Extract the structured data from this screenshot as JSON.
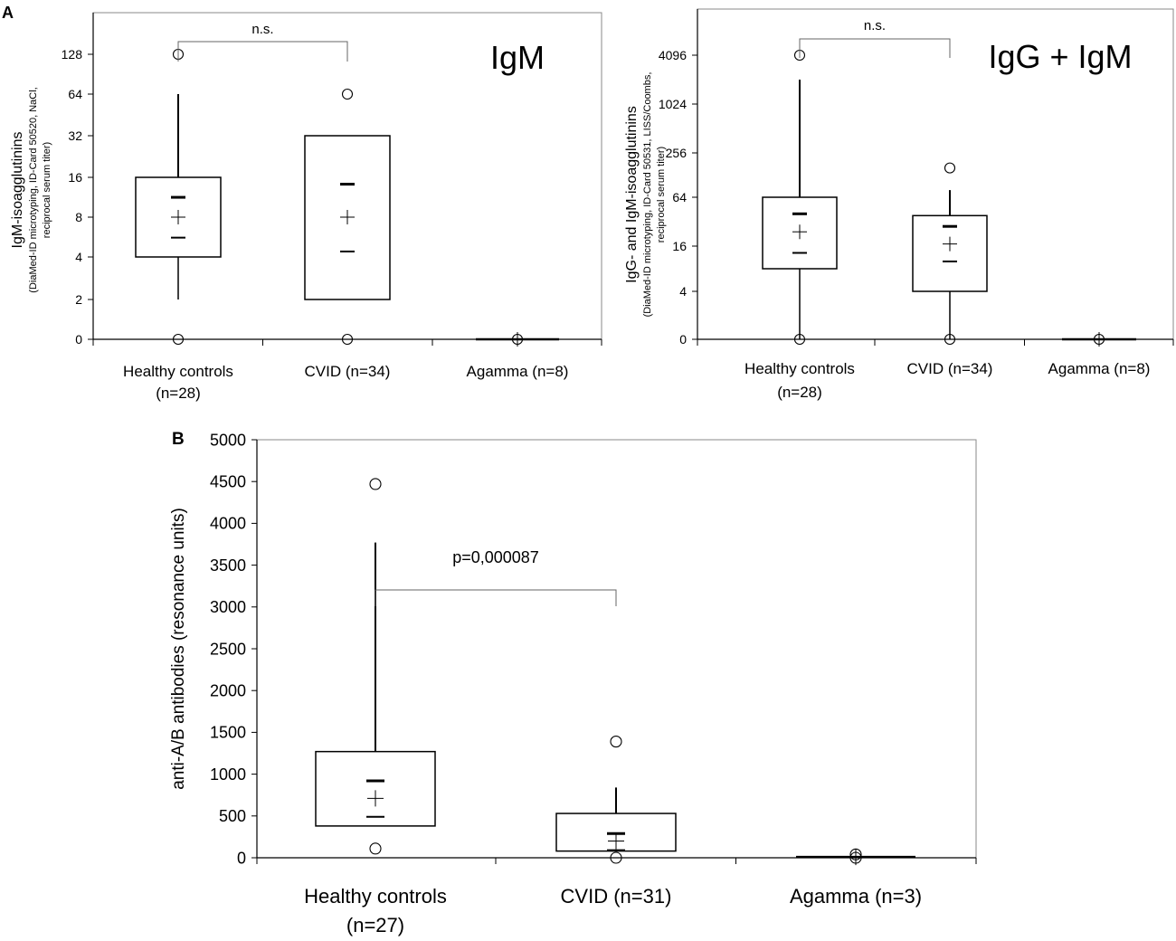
{
  "figure": {
    "panel_a_letter": "A",
    "panel_b_letter": "B"
  },
  "chart_data": [
    {
      "type": "box",
      "panel": "A",
      "title": "IgM",
      "ylabel": "IgM-isoagglutinins",
      "ylabel_sub": [
        "(DiaMed-ID microtyping, ID-Card 50520, NaCl,",
        "reciprocal serum titer)"
      ],
      "y_scale": "log2",
      "ylim": [
        0,
        256
      ],
      "yticks": [
        {
          "value": 0,
          "label": "0"
        },
        {
          "value": 2,
          "label": "2"
        },
        {
          "value": 4,
          "label": "4"
        },
        {
          "value": 8,
          "label": "8"
        },
        {
          "value": 16,
          "label": "16"
        },
        {
          "value": 32,
          "label": "32"
        },
        {
          "value": 64,
          "label": "64"
        },
        {
          "value": 128,
          "label": "128"
        }
      ],
      "categories": [
        {
          "label": [
            "Healthy controls",
            "(n=28)"
          ],
          "whisker_low": 2,
          "q1": 4,
          "q3": 16,
          "whisker_high": 64,
          "mean": 8,
          "ci_low": 5.6,
          "ci_high": 11.3,
          "outliers": [
            0,
            128
          ]
        },
        {
          "label": [
            "CVID (n=34)"
          ],
          "whisker_low": null,
          "q1": 2,
          "q3": 32,
          "whisker_high": null,
          "mean": 8,
          "ci_low": 4.4,
          "ci_high": 14.2,
          "outliers": [
            0,
            64
          ]
        },
        {
          "label": [
            "Agamma (n=8)"
          ],
          "flat": 0,
          "mean": 0,
          "outliers": [
            0
          ]
        }
      ],
      "bracket": {
        "from": 0,
        "to": 1,
        "label": "n.s."
      }
    },
    {
      "type": "box",
      "panel": "A",
      "title": "IgG + IgM",
      "ylabel": "IgG- and IgM-isoagglutinins",
      "ylabel_sub": [
        "(DiaMed-ID microtyping, ID-Card 50531, LISS/Coombs,",
        "reciprocal serum titer)"
      ],
      "y_scale": "log4",
      "ylim": [
        0,
        16384
      ],
      "yticks": [
        {
          "value": 0,
          "label": "0"
        },
        {
          "value": 4,
          "label": "4"
        },
        {
          "value": 16,
          "label": "16"
        },
        {
          "value": 64,
          "label": "64"
        },
        {
          "value": 256,
          "label": "256"
        },
        {
          "value": 1024,
          "label": "1024"
        },
        {
          "value": 4096,
          "label": "4096"
        }
      ],
      "categories": [
        {
          "label": [
            "Healthy controls",
            "(n=28)"
          ],
          "whisker_low": 0,
          "q1": 8,
          "q3": 64,
          "whisker_high": 2048,
          "mean": 24,
          "ci_low": 13,
          "ci_high": 40,
          "outliers": [
            0,
            4096
          ]
        },
        {
          "label": [
            "CVID (n=34)"
          ],
          "whisker_low": 0,
          "q1": 4,
          "q3": 38,
          "whisker_high": 80,
          "mean": 17,
          "ci_low": 10,
          "ci_high": 28,
          "outliers": [
            0,
            160
          ]
        },
        {
          "label": [
            "Agamma (n=8)"
          ],
          "flat": 0,
          "mean": 0,
          "outliers": [
            0
          ]
        }
      ],
      "bracket": {
        "from": 0,
        "to": 1,
        "label": "n.s."
      }
    },
    {
      "type": "box",
      "panel": "B",
      "title": "",
      "ylabel": "anti-A/B antibodies (resonance units)",
      "y_scale": "linear",
      "ylim": [
        0,
        5000
      ],
      "yticks": [
        {
          "value": 0,
          "label": "0"
        },
        {
          "value": 500,
          "label": "500"
        },
        {
          "value": 1000,
          "label": "1000"
        },
        {
          "value": 1500,
          "label": "1500"
        },
        {
          "value": 2000,
          "label": "2000"
        },
        {
          "value": 2500,
          "label": "2500"
        },
        {
          "value": 3000,
          "label": "3000"
        },
        {
          "value": 3500,
          "label": "3500"
        },
        {
          "value": 4000,
          "label": "4000"
        },
        {
          "value": 4500,
          "label": "4500"
        },
        {
          "value": 5000,
          "label": "5000"
        }
      ],
      "categories": [
        {
          "label": [
            "Healthy controls",
            "(n=27)"
          ],
          "whisker_low": 380,
          "q1": 380,
          "q3": 1270,
          "whisker_high": 3770,
          "mean": 710,
          "ci_low": 490,
          "ci_high": 920,
          "outliers": [
            110,
            4470
          ]
        },
        {
          "label": [
            "CVID (n=31)"
          ],
          "whisker_low": 80,
          "q1": 80,
          "q3": 530,
          "whisker_high": 840,
          "mean": 200,
          "ci_low": 90,
          "ci_high": 290,
          "outliers": [
            0,
            1390
          ]
        },
        {
          "label": [
            "Agamma (n=3)"
          ],
          "flat": 10,
          "mean": 10,
          "outliers": [
            0,
            40
          ]
        }
      ],
      "bracket": {
        "from": 0,
        "to": 1,
        "label": "p=0,000087"
      }
    }
  ]
}
